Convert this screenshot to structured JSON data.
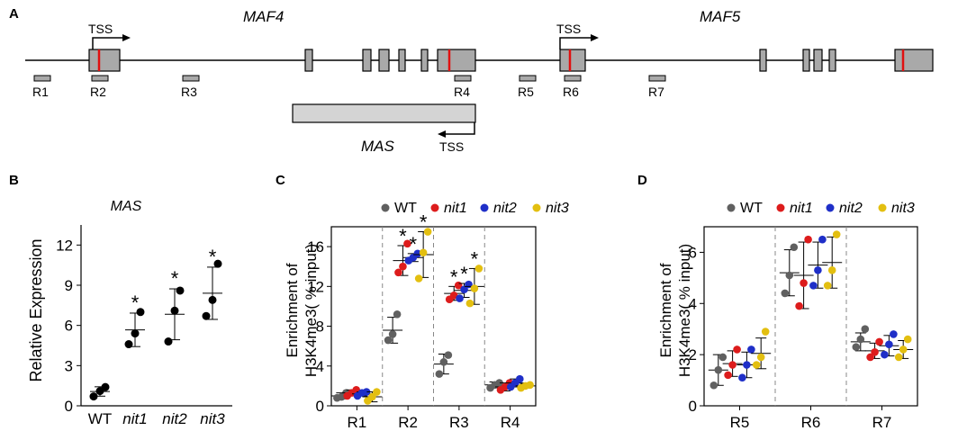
{
  "colors": {
    "WT": "#606060",
    "nit1": "#dd1c1c",
    "nit2": "#1f2fc8",
    "nit3": "#e3bf10",
    "box": "#a9a9a9",
    "mas_box": "#d4d4d4",
    "mark": "#e01010",
    "primer": "#a9a9a9"
  },
  "panel_a": {
    "label": "A",
    "gene1": "MAF4",
    "gene2": "MAF5",
    "tss_labels": [
      "TSS",
      "TSS"
    ],
    "mas_gene": "MAS",
    "mas_tss": "TSS",
    "regions": [
      "R1",
      "R2",
      "R3",
      "R4",
      "R5",
      "R6",
      "R7"
    ]
  },
  "chart_data": [
    {
      "panel": "B",
      "type": "scatter",
      "title": "MAS",
      "ylabel": "Relative Expression",
      "xlabel": "",
      "categories": [
        "WT",
        "nit1",
        "nit2",
        "nit3"
      ],
      "yticks": [
        0,
        3,
        6,
        9,
        12
      ],
      "ylim": [
        0,
        13.5
      ],
      "points": [
        [
          0.7,
          1.1,
          1.4
        ],
        [
          4.6,
          5.4,
          7.0
        ],
        [
          4.8,
          7.1,
          8.6
        ],
        [
          6.7,
          7.9,
          10.6
        ]
      ],
      "means": [
        1.07,
        5.67,
        6.83,
        8.4
      ],
      "sd": [
        0.35,
        1.25,
        1.9,
        1.95
      ],
      "significance": [
        "",
        "*",
        "*",
        "*"
      ]
    },
    {
      "panel": "C",
      "type": "scatter",
      "ylabel_line1": "Enrichment of",
      "ylabel_line2": "H3K4me3( % input)",
      "legend": [
        "WT",
        "nit1",
        "nit2",
        "nit3"
      ],
      "groups": [
        "R1",
        "R2",
        "R3",
        "R4"
      ],
      "yticks": [
        0,
        4,
        8,
        12,
        16
      ],
      "ylim": [
        0,
        18
      ],
      "series": [
        {
          "name": "WT",
          "values": [
            [
              0.8,
              0.9,
              1.3
            ],
            [
              6.6,
              7.2,
              9.2
            ],
            [
              3.2,
              4.4,
              5.1
            ],
            [
              1.8,
              2.1,
              2.3
            ]
          ],
          "means": [
            1.0,
            7.6,
            4.2,
            2.1
          ],
          "sd": [
            0.3,
            1.3,
            1.0,
            0.3
          ],
          "sig": [
            "",
            "",
            "",
            ""
          ]
        },
        {
          "name": "nit1",
          "values": [
            [
              1.0,
              1.3,
              1.6
            ],
            [
              13.4,
              14.0,
              16.3
            ],
            [
              10.7,
              11.1,
              12.1
            ],
            [
              1.6,
              1.9,
              2.3
            ]
          ],
          "means": [
            1.3,
            14.6,
            11.3,
            1.9
          ],
          "sd": [
            0.3,
            1.5,
            0.7,
            0.4
          ],
          "sig": [
            "",
            "*",
            "*",
            ""
          ]
        },
        {
          "name": "nit2",
          "values": [
            [
              1.0,
              1.3,
              1.4
            ],
            [
              14.6,
              14.9,
              15.3
            ],
            [
              10.8,
              11.7,
              12.2
            ],
            [
              1.9,
              2.3,
              2.7
            ]
          ],
          "means": [
            1.2,
            14.9,
            11.6,
            2.3
          ],
          "sd": [
            0.2,
            0.4,
            0.7,
            0.4
          ],
          "sig": [
            "",
            "*",
            "",
            ""
          ]
        },
        {
          "name": "nit3",
          "values": [
            [
              0.5,
              0.9,
              1.4
            ],
            [
              12.8,
              15.4,
              17.5
            ],
            [
              10.3,
              11.8,
              13.8
            ],
            [
              1.8,
              2.0,
              2.1
            ]
          ],
          "means": [
            0.9,
            15.2,
            12.0,
            2.0
          ],
          "sd": [
            0.5,
            2.3,
            1.8,
            0.2
          ],
          "sig": [
            "",
            "*",
            "*",
            ""
          ]
        }
      ],
      "extra_star_R3_nit2": "*"
    },
    {
      "panel": "D",
      "type": "scatter",
      "ylabel_line1": "Enrichment of",
      "ylabel_line2": "H3K4me3( % input)",
      "legend": [
        "WT",
        "nit1",
        "nit2",
        "nit3"
      ],
      "groups": [
        "R5",
        "R6",
        "R7"
      ],
      "yticks": [
        0,
        2,
        4,
        6
      ],
      "ylim": [
        0,
        7
      ],
      "series": [
        {
          "name": "WT",
          "values": [
            [
              0.8,
              1.4,
              1.9
            ],
            [
              4.4,
              5.1,
              6.2
            ],
            [
              2.3,
              2.6,
              3.0
            ]
          ],
          "means": [
            1.4,
            5.2,
            2.5
          ],
          "sd": [
            0.6,
            0.9,
            0.35
          ]
        },
        {
          "name": "nit1",
          "values": [
            [
              1.2,
              1.6,
              2.2
            ],
            [
              3.9,
              4.8,
              6.5
            ],
            [
              1.9,
              2.1,
              2.5
            ]
          ],
          "means": [
            1.65,
            5.1,
            2.15
          ],
          "sd": [
            0.5,
            1.3,
            0.3
          ]
        },
        {
          "name": "nit2",
          "values": [
            [
              1.1,
              1.6,
              2.2
            ],
            [
              4.7,
              5.3,
              6.5
            ],
            [
              2.0,
              2.4,
              2.8
            ]
          ],
          "means": [
            1.6,
            5.5,
            2.35
          ],
          "sd": [
            0.5,
            0.9,
            0.4
          ]
        },
        {
          "name": "nit3",
          "values": [
            [
              1.6,
              1.9,
              2.9
            ],
            [
              4.7,
              5.3,
              6.7
            ],
            [
              1.9,
              2.2,
              2.6
            ]
          ],
          "means": [
            2.05,
            5.6,
            2.2
          ],
          "sd": [
            0.6,
            1.0,
            0.35
          ]
        }
      ]
    }
  ],
  "panel_labels": {
    "b": "B",
    "c": "C",
    "d": "D"
  }
}
